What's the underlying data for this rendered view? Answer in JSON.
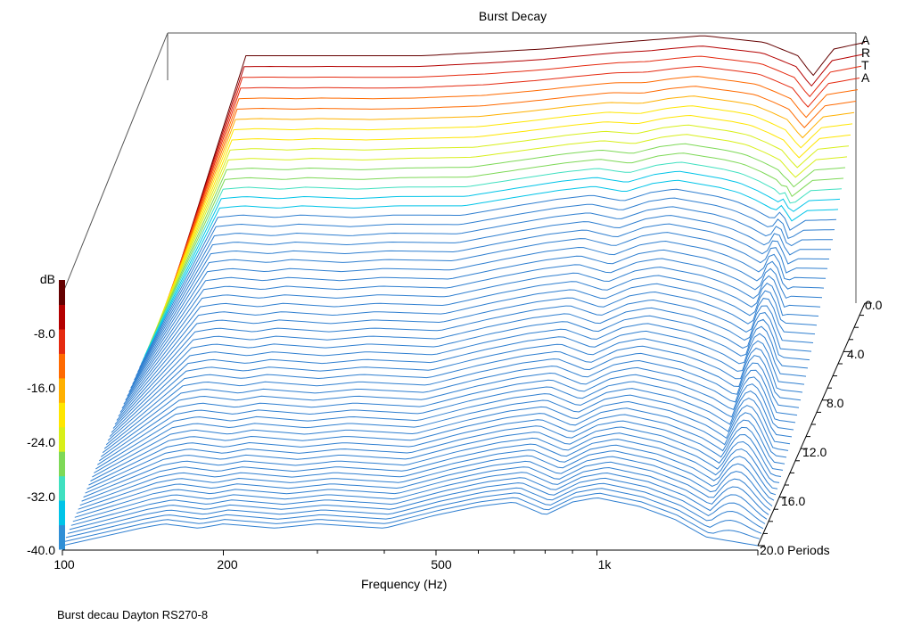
{
  "chart_data": {
    "type": "waterfall-3d",
    "title": "Burst Decay",
    "xlabel": "Frequency (Hz)",
    "x_scale": "log",
    "x_range": [
      100,
      2000
    ],
    "x_ticks": [
      {
        "value": 100,
        "label": "100"
      },
      {
        "value": 200,
        "label": "200"
      },
      {
        "value": 500,
        "label": "500"
      },
      {
        "value": 1000,
        "label": "1k"
      }
    ],
    "depth_axis": {
      "unit": "Periods",
      "range": [
        0,
        20
      ],
      "ticks": [
        {
          "value": 0,
          "label": "0.0"
        },
        {
          "value": 4,
          "label": "4.0"
        },
        {
          "value": 8,
          "label": "8.0"
        },
        {
          "value": 12,
          "label": "12.0"
        },
        {
          "value": 16,
          "label": "16.0"
        },
        {
          "value": 20,
          "label": "20.0 Periods"
        }
      ]
    },
    "color_axis": {
      "unit": "dB",
      "range": [
        -40,
        0
      ],
      "ticks": [
        {
          "value": -8,
          "label": "-8.0"
        },
        {
          "value": -16,
          "label": "-16.0"
        },
        {
          "value": -24,
          "label": "-24.0"
        },
        {
          "value": -32,
          "label": "-32.0"
        },
        {
          "value": -40,
          "label": "-40.0"
        }
      ],
      "colors": [
        "#2f8fd6",
        "#00c4e8",
        "#40e0c0",
        "#7ed957",
        "#d8ef1a",
        "#ffe600",
        "#ffb000",
        "#ff6a00",
        "#e52a10",
        "#b40000",
        "#640000"
      ]
    },
    "front_response_db": [
      {
        "f": 140,
        "db": -36
      },
      {
        "f": 155,
        "db": -35
      },
      {
        "f": 180,
        "db": -36
      },
      {
        "f": 200,
        "db": -35
      },
      {
        "f": 250,
        "db": -36
      },
      {
        "f": 300,
        "db": -35
      },
      {
        "f": 400,
        "db": -36
      },
      {
        "f": 500,
        "db": -33
      },
      {
        "f": 600,
        "db": -31
      },
      {
        "f": 700,
        "db": -30
      },
      {
        "f": 800,
        "db": -33
      },
      {
        "f": 900,
        "db": -30
      },
      {
        "f": 1000,
        "db": -29
      },
      {
        "f": 1200,
        "db": -31
      },
      {
        "f": 1400,
        "db": -34
      },
      {
        "f": 1600,
        "db": -38
      },
      {
        "f": 2000,
        "db": -40
      }
    ],
    "back_response_db": [
      {
        "f": 140,
        "db": -3
      },
      {
        "f": 200,
        "db": -3
      },
      {
        "f": 300,
        "db": -3
      },
      {
        "f": 500,
        "db": -2
      },
      {
        "f": 700,
        "db": -1
      },
      {
        "f": 1000,
        "db": 0
      },
      {
        "f": 1300,
        "db": -1
      },
      {
        "f": 1500,
        "db": -3
      },
      {
        "f": 1600,
        "db": -6
      },
      {
        "f": 1750,
        "db": -2
      },
      {
        "f": 2000,
        "db": -1
      }
    ],
    "brand": [
      "A",
      "R",
      "T",
      "A"
    ],
    "caption": "Burst decau Dayton RS270-8"
  }
}
